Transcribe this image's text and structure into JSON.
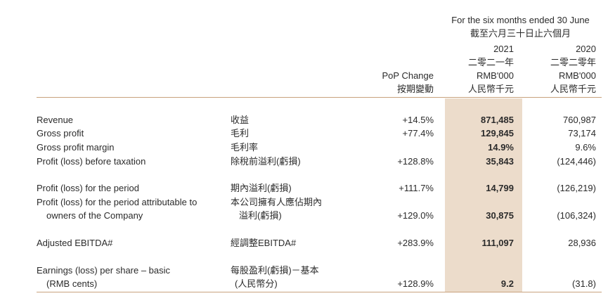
{
  "header": {
    "period": "For the six months ended 30 June",
    "period_zh": "截至六月三十日止六個月",
    "y2021": "2021",
    "y2021_zh": "二零二一年",
    "y2020": "2020",
    "y2020_zh": "二零二零年",
    "unit": "RMB'000",
    "unit_zh": "人民幣千元",
    "pop": "PoP Change",
    "pop_zh": "按期變動"
  },
  "rows": [
    {
      "en": "Revenue",
      "zh": "收益",
      "pop": "+14.5%",
      "v2021": "871,485",
      "v2020": "760,987"
    },
    {
      "en": "Gross profit",
      "zh": "毛利",
      "pop": "+77.4%",
      "v2021": "129,845",
      "v2020": "73,174"
    },
    {
      "en": "Gross profit margin",
      "zh": "毛利率",
      "pop": "",
      "v2021": "14.9%",
      "v2020": "9.6%"
    },
    {
      "en": "Profit (loss) before taxation",
      "zh": "除稅前溢利(虧損)",
      "pop": "+128.8%",
      "v2021": "35,843",
      "v2020": "(124,446)"
    },
    {
      "en": "Profit (loss) for the period",
      "zh": "期內溢利(虧損)",
      "pop": "+111.7%",
      "v2021": "14,799",
      "v2020": "(126,219)"
    },
    {
      "en": "Profit (loss) for the period attributable to",
      "en2": "owners of the Company",
      "zh": "本公司擁有人應佔期內",
      "zh2": "溢利(虧損)",
      "pop": "+129.0%",
      "v2021": "30,875",
      "v2020": "(106,324)"
    },
    {
      "en": "Adjusted EBITDA#",
      "zh": "經調整EBITDA#",
      "pop": "+283.9%",
      "v2021": "111,097",
      "v2020": "28,936"
    },
    {
      "en": "Earnings (loss) per share – basic",
      "en2": "(RMB cents)",
      "zh": "每股盈利(虧損)－基本",
      "zh2": "(人民幣分)",
      "pop": "+128.9%",
      "v2021": "9.2",
      "v2020": "(31.8)"
    }
  ]
}
